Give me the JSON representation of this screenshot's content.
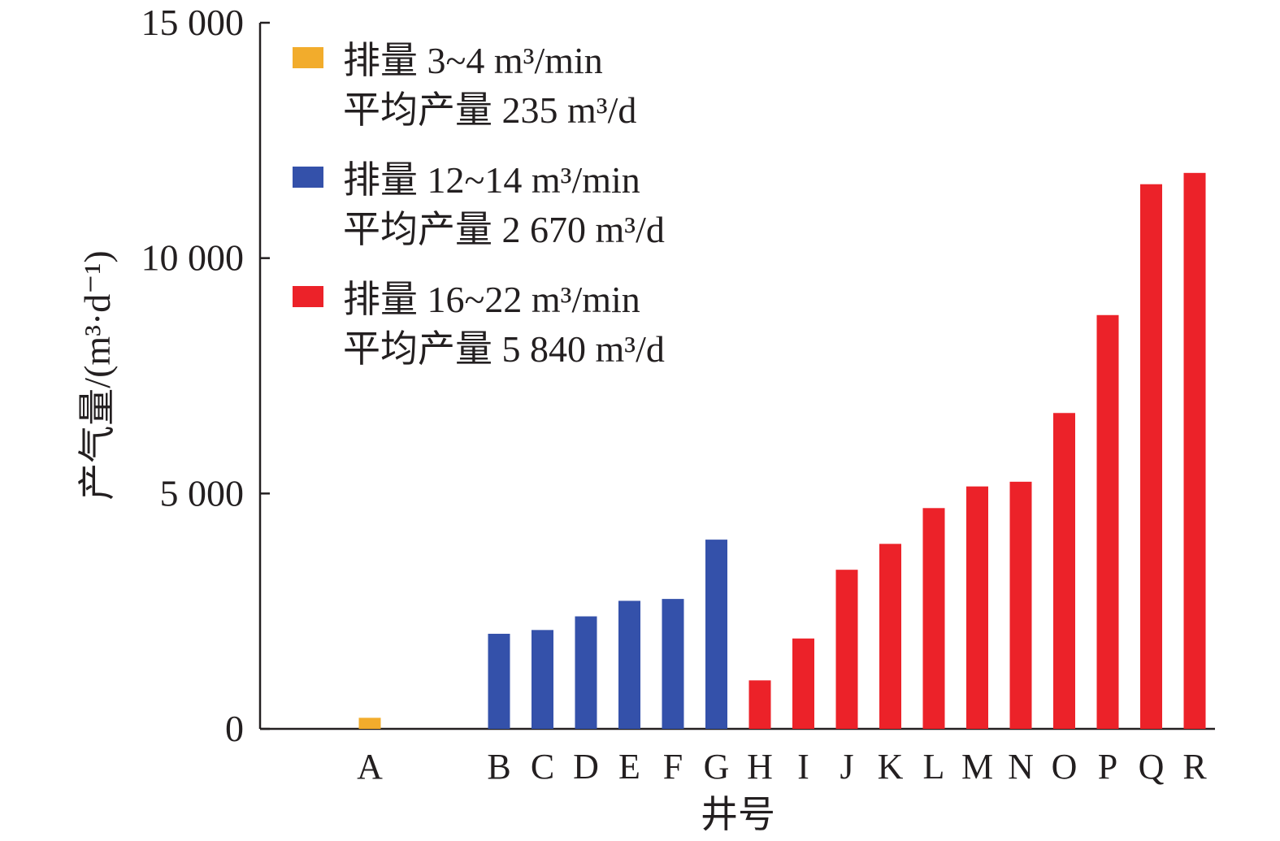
{
  "chart_data": {
    "type": "bar",
    "xlabel": "井号",
    "ylabel": "产气量/(m³·d⁻¹)",
    "ylim": [
      0,
      15000
    ],
    "yticks": [
      {
        "value": 0,
        "label": "0"
      },
      {
        "value": 5000,
        "label": "5 000"
      },
      {
        "value": 10000,
        "label": "10 000"
      },
      {
        "value": 15000,
        "label": "15 000"
      }
    ],
    "grid": false,
    "legend_position": "top-left",
    "categories": [
      "A",
      "B",
      "C",
      "D",
      "E",
      "F",
      "G",
      "H",
      "I",
      "J",
      "K",
      "L",
      "M",
      "N",
      "O",
      "P",
      "Q",
      "R"
    ],
    "values": [
      235,
      2020,
      2100,
      2390,
      2720,
      2760,
      4020,
      1030,
      1920,
      3380,
      3930,
      4690,
      5150,
      5250,
      6710,
      8790,
      11570,
      11810
    ],
    "bar_series": [
      0,
      1,
      1,
      1,
      1,
      1,
      1,
      2,
      2,
      2,
      2,
      2,
      2,
      2,
      2,
      2,
      2,
      2
    ],
    "series": [
      {
        "color": "#f2ac2c",
        "legend_line1": "排量 3~4 m³/min",
        "legend_line2": "平均产量 235 m³/d"
      },
      {
        "color": "#3451aa",
        "legend_line1": "排量 12~14 m³/min",
        "legend_line2": "平均产量 2 670 m³/d"
      },
      {
        "color": "#ec2229",
        "legend_line1": "排量 16~22 m³/min",
        "legend_line2": "平均产量 5 840 m³/d"
      }
    ]
  }
}
